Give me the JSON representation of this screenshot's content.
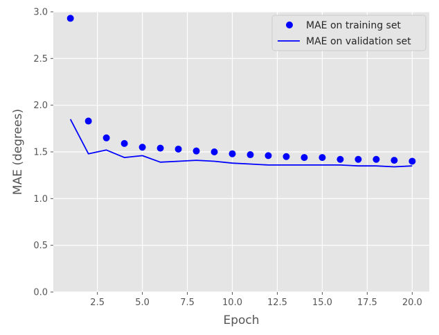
{
  "chart_data": {
    "type": "line",
    "title": "",
    "xlabel": "Epoch",
    "ylabel": "MAE (degrees)",
    "xlim": [
      0.05,
      20.95
    ],
    "ylim": [
      0.0,
      3.0
    ],
    "x_ticks": [
      2.5,
      5.0,
      7.5,
      10.0,
      12.5,
      15.0,
      17.5,
      20.0
    ],
    "x_tick_labels": [
      "2.5",
      "5.0",
      "7.5",
      "10.0",
      "12.5",
      "15.0",
      "17.5",
      "20.0"
    ],
    "y_ticks": [
      0.0,
      0.5,
      1.0,
      1.5,
      2.0,
      2.5,
      3.0
    ],
    "y_tick_labels": [
      "0.0",
      "0.5",
      "1.0",
      "1.5",
      "2.0",
      "2.5",
      "3.0"
    ],
    "grid": true,
    "legend_position": "top-right",
    "x": [
      1,
      2,
      3,
      4,
      5,
      6,
      7,
      8,
      9,
      10,
      11,
      12,
      13,
      14,
      15,
      16,
      17,
      18,
      19,
      20
    ],
    "series": [
      {
        "name": "MAE on training set",
        "style": "points",
        "color": "#0000ff",
        "values": [
          2.93,
          1.83,
          1.65,
          1.59,
          1.55,
          1.54,
          1.53,
          1.51,
          1.5,
          1.48,
          1.47,
          1.46,
          1.45,
          1.44,
          1.44,
          1.42,
          1.42,
          1.42,
          1.41,
          1.4
        ]
      },
      {
        "name": "MAE on validation set",
        "style": "line",
        "color": "#0000ff",
        "values": [
          1.85,
          1.48,
          1.52,
          1.44,
          1.46,
          1.39,
          1.4,
          1.41,
          1.4,
          1.38,
          1.37,
          1.36,
          1.36,
          1.36,
          1.36,
          1.36,
          1.35,
          1.35,
          1.34,
          1.35
        ]
      }
    ],
    "colors": {
      "panel": "#e5e5e5",
      "grid": "#ffffff",
      "text": "#555555"
    }
  }
}
